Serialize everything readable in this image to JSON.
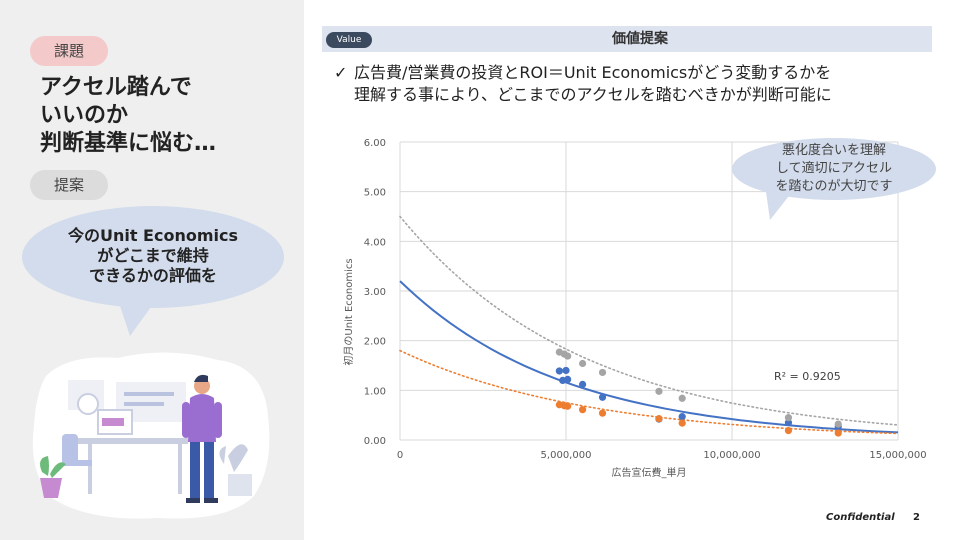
{
  "left": {
    "issue_tag": "課題",
    "issue_heading": [
      "アクセル踏んで",
      "いいのか",
      "判断基準に悩む…"
    ],
    "proposal_tag": "提案",
    "proposal_bubble": [
      "今のUnit Economics",
      "がどこまで維持",
      "できるかの評価を"
    ]
  },
  "header": {
    "pill": "Value",
    "title": "価値提案"
  },
  "description": {
    "check": "✓",
    "line1": "広告費/営業費の投資とROI＝Unit Economicsがどう変動するかを",
    "line2": "理解する事により、どこまでのアクセルを踏むべきかが判断可能に"
  },
  "note": [
    "悪化度合いを理解",
    "して適切にアクセル",
    "を踏むのが大切です"
  ],
  "footer": {
    "confidential": "Confidential",
    "page": "2"
  },
  "colors": {
    "blue": "#4472c4",
    "gray": "#a5a5a5",
    "orange": "#ed7d31",
    "bubble": "#d3dcec"
  },
  "chart_data": {
    "type": "scatter",
    "xlabel": "広告宣伝費_単月",
    "ylabel": "初月のUnit Economics",
    "xlim": [
      0,
      15000000
    ],
    "ylim": [
      0,
      6
    ],
    "x_ticks": [
      "0",
      "5,000,000",
      "10,000,000",
      "15,000,000"
    ],
    "x_tick_values": [
      0,
      5000000,
      10000000,
      15000000
    ],
    "y_ticks": [
      "0.00",
      "1.00",
      "2.00",
      "3.00",
      "4.00",
      "5.00",
      "6.00"
    ],
    "y_tick_values": [
      0,
      1,
      2,
      3,
      4,
      5,
      6
    ],
    "grid": true,
    "annotation": "R² = 0.9205",
    "series": [
      {
        "color": "#4472c4",
        "trend": {
          "a": 3.2,
          "b": 0.203,
          "style": "solid"
        },
        "points": [
          [
            4800000,
            1.39
          ],
          [
            5000000,
            1.4
          ],
          [
            4900000,
            1.2
          ],
          [
            5050000,
            1.22
          ],
          [
            5500000,
            1.12
          ],
          [
            6100000,
            0.86
          ],
          [
            7800000,
            0.42
          ],
          [
            8500000,
            0.47
          ],
          [
            11700000,
            0.35
          ],
          [
            13200000,
            0.27
          ]
        ]
      },
      {
        "color": "#a5a5a5",
        "trend": {
          "a": 4.5,
          "b": 0.18,
          "style": "dotted"
        },
        "points": [
          [
            4800000,
            1.77
          ],
          [
            4950000,
            1.73
          ],
          [
            5050000,
            1.69
          ],
          [
            5500000,
            1.54
          ],
          [
            6100000,
            1.36
          ],
          [
            7800000,
            0.98
          ],
          [
            8500000,
            0.84
          ],
          [
            11700000,
            0.45
          ],
          [
            13200000,
            0.32
          ]
        ]
      },
      {
        "color": "#ed7d31",
        "trend": {
          "a": 1.8,
          "b": 0.175,
          "style": "dotted"
        },
        "points": [
          [
            4800000,
            0.71
          ],
          [
            4950000,
            0.69
          ],
          [
            5050000,
            0.68
          ],
          [
            5500000,
            0.61
          ],
          [
            6100000,
            0.54
          ],
          [
            7800000,
            0.43
          ],
          [
            8500000,
            0.34
          ],
          [
            11700000,
            0.19
          ],
          [
            13200000,
            0.14
          ]
        ]
      }
    ]
  }
}
